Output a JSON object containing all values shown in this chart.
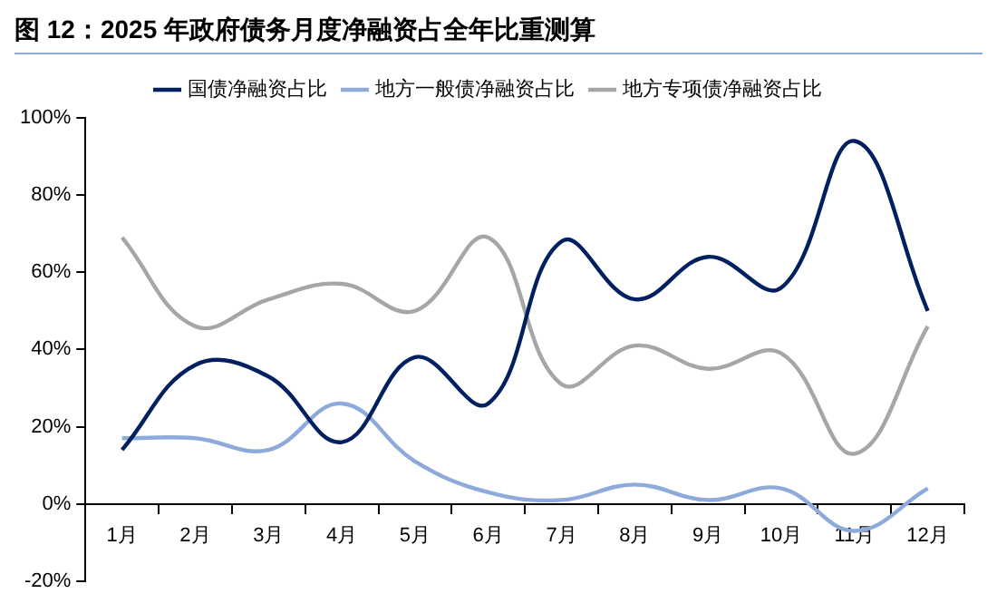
{
  "chart_data": {
    "type": "line",
    "title": "图 12：2025 年政府债务月度净融资占全年比重测算",
    "categories": [
      "1月",
      "2月",
      "3月",
      "4月",
      "5月",
      "6月",
      "7月",
      "8月",
      "9月",
      "10月",
      "11月",
      "12月"
    ],
    "series": [
      {
        "name": "国债净融资占比",
        "color": "#002060",
        "values": [
          14,
          36,
          33,
          16,
          38,
          26,
          68,
          53,
          64,
          56,
          94,
          50
        ]
      },
      {
        "name": "地方一般债净融资占比",
        "color": "#8eaadb",
        "values": [
          17,
          17,
          14,
          26,
          11,
          3,
          1,
          5,
          1,
          4,
          -7,
          4
        ]
      },
      {
        "name": "地方专项债净融资占比",
        "color": "#a6a6a6",
        "values": [
          69,
          46,
          53,
          57,
          50,
          69,
          31,
          41,
          35,
          39,
          13,
          46
        ]
      }
    ],
    "ylim": [
      -20,
      100
    ],
    "yticks": [
      {
        "value": -20,
        "label": "-20%"
      },
      {
        "value": 0,
        "label": "0%"
      },
      {
        "value": 20,
        "label": "20%"
      },
      {
        "value": 40,
        "label": "40%"
      },
      {
        "value": 60,
        "label": "60%"
      },
      {
        "value": 80,
        "label": "80%"
      },
      {
        "value": 100,
        "label": "100%"
      }
    ],
    "grid": false,
    "legend": "top",
    "marker": "none",
    "line_style": "solid"
  }
}
